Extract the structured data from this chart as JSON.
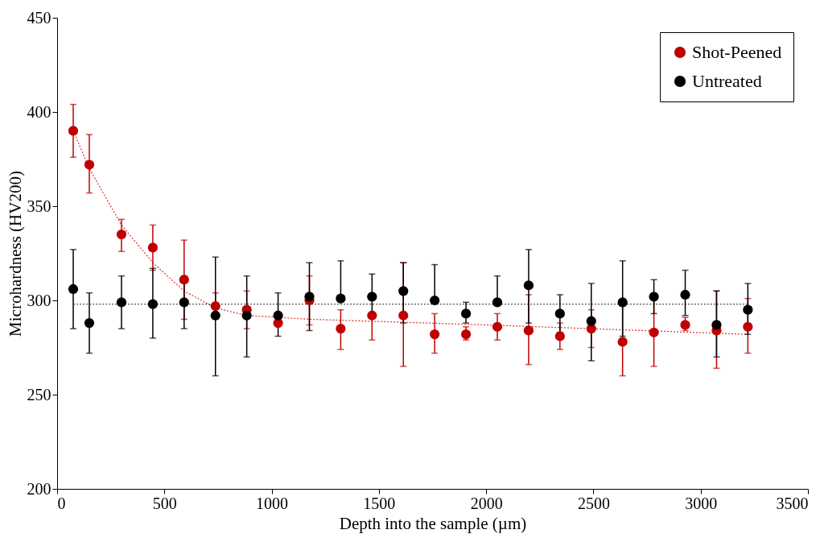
{
  "chart_data": {
    "type": "scatter",
    "xlabel": "Depth into the sample (µm)",
    "ylabel": "Microhardness (HV200)",
    "xlim": [
      0,
      3500
    ],
    "xticks": [
      0,
      500,
      1000,
      1500,
      2000,
      2500,
      3000,
      3500
    ],
    "ylim": [
      200,
      450
    ],
    "yticks": [
      200,
      250,
      300,
      350,
      400,
      450
    ],
    "grid": false,
    "legend": "top right",
    "marker": "circle",
    "x": [
      75,
      150,
      300,
      446,
      592,
      738,
      884,
      1030,
      1176,
      1322,
      1468,
      1614,
      1760,
      1906,
      2052,
      2198,
      2344,
      2490,
      2636,
      2782,
      2928,
      3074,
      3220
    ],
    "series": [
      {
        "name": "Shot-Peened",
        "color": "#c00000",
        "values": [
          390,
          372,
          335,
          328,
          311,
          297,
          295,
          288,
          300,
          285,
          292,
          292,
          282,
          282,
          286,
          284,
          281,
          285,
          278,
          283,
          287,
          284,
          286
        ],
        "errors": [
          [
            376,
            404
          ],
          [
            357,
            388
          ],
          [
            326,
            343
          ],
          [
            316,
            340
          ],
          [
            290,
            332
          ],
          [
            290,
            304
          ],
          [
            285,
            305
          ],
          null,
          [
            287,
            313
          ],
          [
            274,
            295
          ],
          [
            279,
            292
          ],
          [
            265,
            320
          ],
          [
            272,
            293
          ],
          [
            279,
            286
          ],
          [
            279,
            293
          ],
          [
            266,
            303
          ],
          [
            274,
            288
          ],
          [
            275,
            295
          ],
          [
            260,
            297
          ],
          [
            265,
            303
          ],
          [
            284,
            291
          ],
          [
            264,
            305
          ],
          [
            272,
            301
          ]
        ]
      },
      {
        "name": "Untreated",
        "color": "#000000",
        "values": [
          306,
          288,
          299,
          298,
          299,
          292,
          292,
          292,
          302,
          301,
          302,
          305,
          300,
          293,
          299,
          308,
          293,
          289,
          299,
          302,
          303,
          287,
          295
        ],
        "errors": [
          [
            285,
            327
          ],
          [
            272,
            304
          ],
          [
            285,
            313
          ],
          [
            280,
            317
          ],
          [
            285,
            313
          ],
          [
            260,
            323
          ],
          [
            270,
            313
          ],
          [
            281,
            304
          ],
          [
            284,
            320
          ],
          [
            301,
            321
          ],
          [
            291,
            314
          ],
          [
            288,
            320
          ],
          [
            300,
            319
          ],
          [
            288,
            299
          ],
          [
            299,
            313
          ],
          [
            288,
            327
          ],
          [
            283,
            303
          ],
          [
            268,
            309
          ],
          [
            281,
            321
          ],
          [
            293,
            311
          ],
          [
            292,
            316
          ],
          [
            270,
            305
          ],
          [
            282,
            309
          ]
        ]
      },
      {
        "type": "line",
        "color": "#e03030",
        "line_style": "dotted",
        "marker": "none",
        "values": [
          390,
          370,
          340,
          320,
          305,
          296,
          292,
          290,
          287,
          282
        ],
        "x": [
          75,
          150,
          300,
          446,
          592,
          738,
          884,
          1176,
          2000,
          3220
        ]
      },
      {
        "type": "line",
        "color": "#555555",
        "line_style": "dotted",
        "marker": "none",
        "x": [
          75,
          3220
        ],
        "values": [
          298,
          298
        ]
      }
    ]
  }
}
